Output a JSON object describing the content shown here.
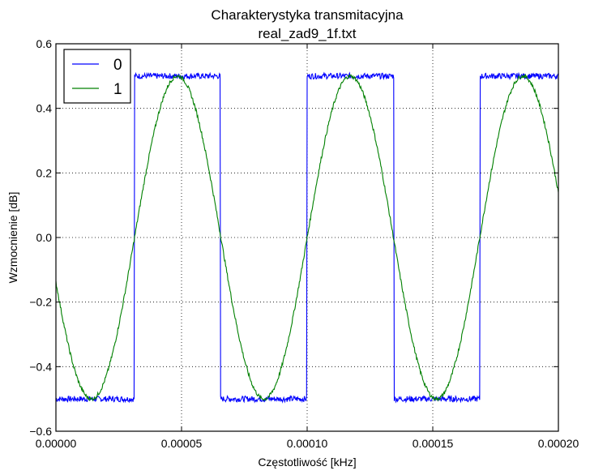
{
  "chart_data": {
    "type": "line",
    "title": "Charakterystyka transmitacyjna",
    "subtitle": "real_zad9_1f.txt",
    "xlabel": "Częstotliwość [kHz]",
    "ylabel": "Wzmocnienie [dB]",
    "xlim": [
      0,
      0.0002
    ],
    "ylim": [
      -0.6,
      0.6
    ],
    "xticks": [
      0,
      5e-05,
      0.0001,
      0.00015,
      0.0002
    ],
    "xtick_labels": [
      "0.00000",
      "0.00005",
      "0.00010",
      "0.00015",
      "0.00020"
    ],
    "yticks": [
      -0.6,
      -0.4,
      -0.2,
      0.0,
      0.2,
      0.4,
      0.6
    ],
    "ytick_labels": [
      "−0.6",
      "−0.4",
      "−0.2",
      "0.0",
      "0.2",
      "0.4",
      "0.6"
    ],
    "grid": true,
    "legend_position": "top-left",
    "series": [
      {
        "name": "0",
        "color": "#0000ff",
        "shape": "square-wave",
        "amplitude": 0.5,
        "points": [
          [
            0.0,
            -0.5
          ],
          [
            3.13e-05,
            -0.5
          ],
          [
            3.13e-05,
            0.5
          ],
          [
            6.55e-05,
            0.5
          ],
          [
            6.55e-05,
            -0.5
          ],
          [
            0.0001,
            -0.5
          ],
          [
            0.0001,
            0.5
          ],
          [
            0.0001345,
            0.5
          ],
          [
            0.0001345,
            -0.5
          ],
          [
            0.0001687,
            -0.5
          ],
          [
            0.0001687,
            0.5
          ],
          [
            0.0002,
            0.5
          ]
        ]
      },
      {
        "name": "1",
        "color": "#008000",
        "shape": "sine",
        "amplitude": 0.5,
        "points": [
          [
            0.0,
            -0.14
          ],
          [
            1.57e-05,
            -0.5
          ],
          [
            3.13e-05,
            0.0
          ],
          [
            4.84e-05,
            0.5
          ],
          [
            6.55e-05,
            0.0
          ],
          [
            8.28e-05,
            -0.5
          ],
          [
            0.0001,
            0.0
          ],
          [
            0.0001172,
            0.5
          ],
          [
            0.0001345,
            0.0
          ],
          [
            0.0001516,
            -0.5
          ],
          [
            0.0001687,
            0.0
          ],
          [
            0.0001858,
            0.5
          ],
          [
            0.0002,
            0.15
          ]
        ]
      }
    ]
  }
}
